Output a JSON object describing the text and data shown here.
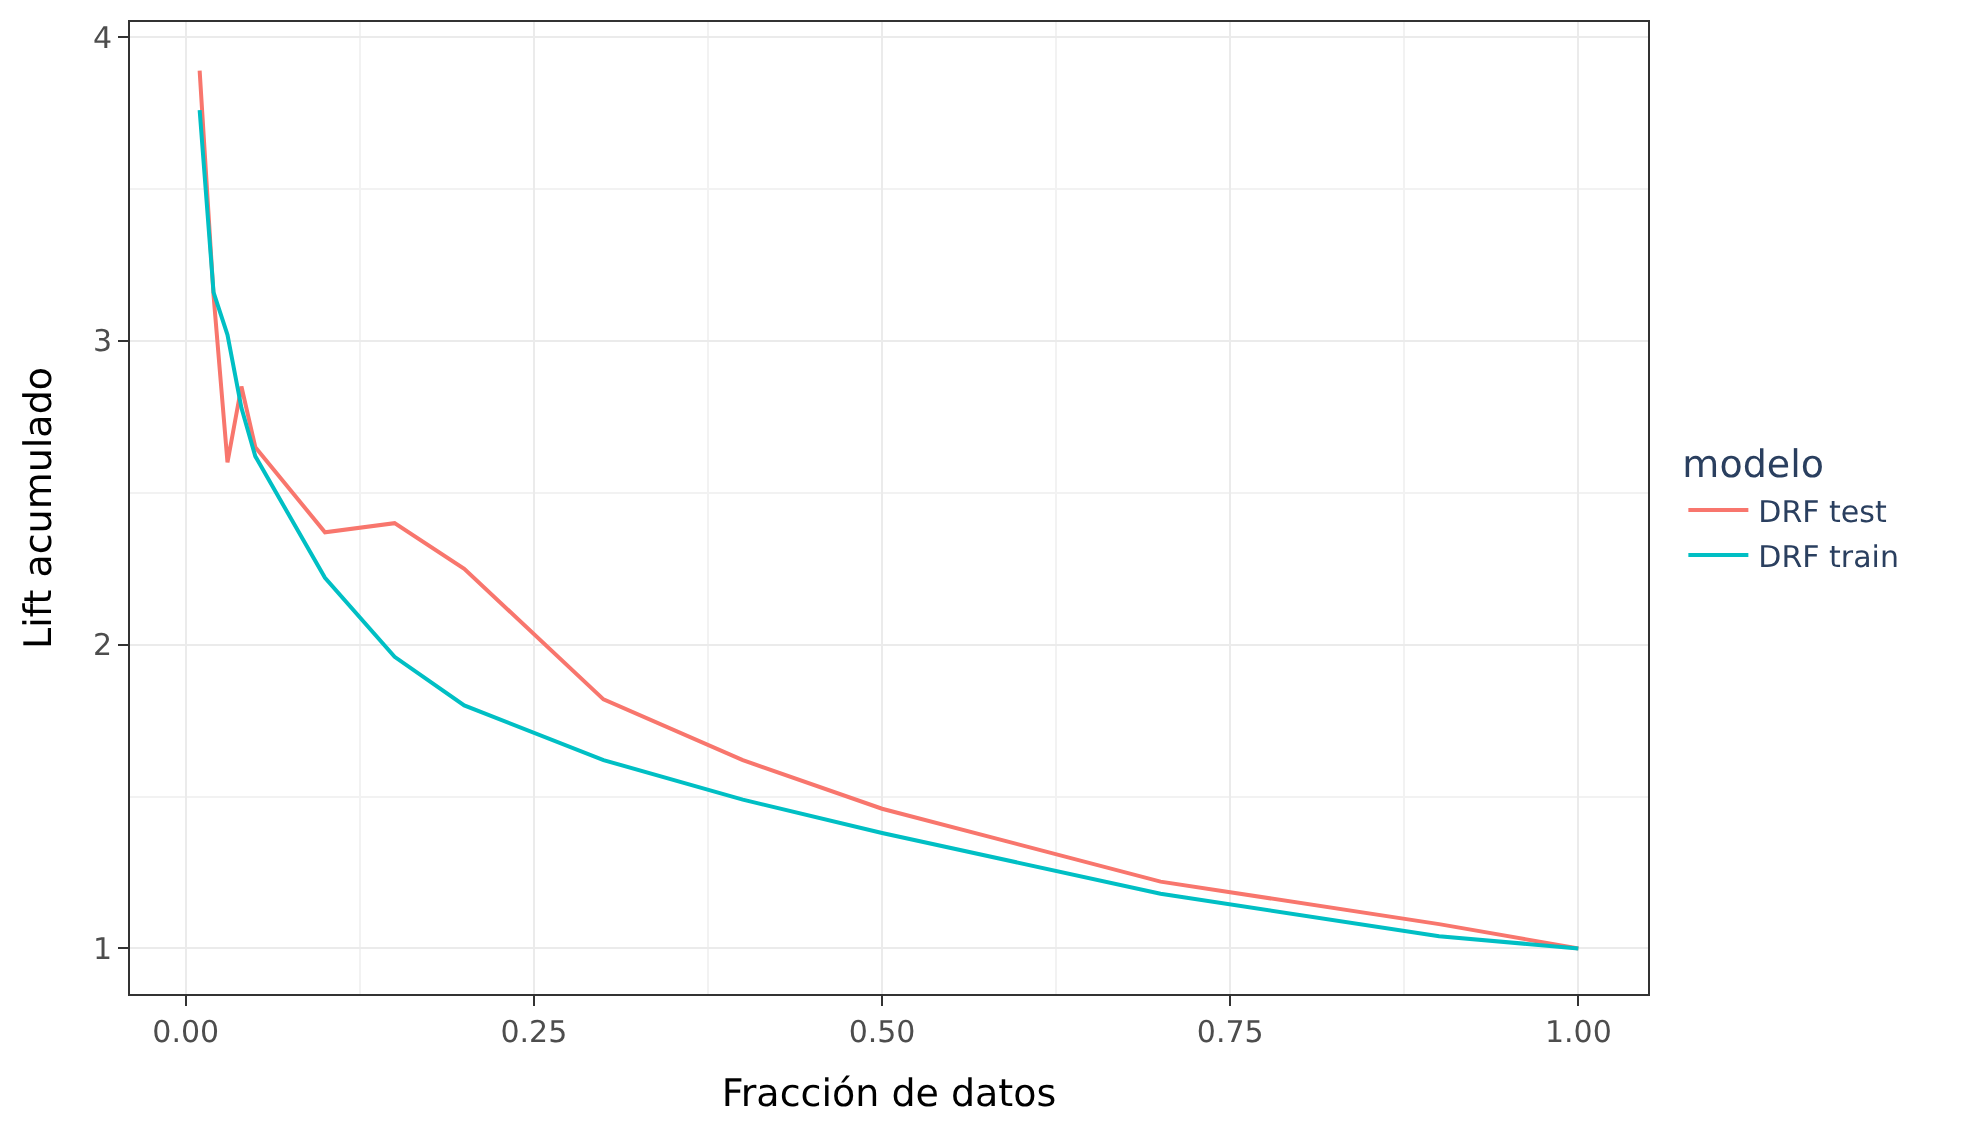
{
  "chart_data": {
    "type": "line",
    "xlabel": "Fracción de datos",
    "ylabel": "Lift acumulado",
    "legend_title": "modelo",
    "x": [
      0.01,
      0.02,
      0.03,
      0.04,
      0.05,
      0.1,
      0.15,
      0.2,
      0.3,
      0.4,
      0.5,
      0.7,
      0.9,
      1.0
    ],
    "series": [
      {
        "name": "DRF test",
        "color": "#f8766d",
        "values": [
          3.89,
          3.15,
          2.6,
          2.85,
          2.65,
          2.37,
          2.4,
          2.25,
          1.82,
          1.62,
          1.46,
          1.22,
          1.08,
          1.0
        ]
      },
      {
        "name": "DRF train",
        "color": "#00bfc4",
        "values": [
          3.76,
          3.16,
          3.02,
          2.78,
          2.62,
          2.22,
          1.96,
          1.8,
          1.62,
          1.49,
          1.38,
          1.18,
          1.04,
          1.0
        ]
      }
    ],
    "xlim": [
      -0.04,
      1.05
    ],
    "xticks": [
      {
        "value": 0,
        "label": "0.00"
      },
      0.25,
      {
        "value": 0.5,
        "label": "0.50"
      },
      0.75,
      {
        "value": 1,
        "label": "1.00"
      }
    ],
    "ylim": [
      0.85,
      4.05
    ],
    "yticks": [
      1,
      2,
      3,
      4
    ],
    "grid": true,
    "legend": "right",
    "line_style": "solid",
    "marker": "none"
  }
}
